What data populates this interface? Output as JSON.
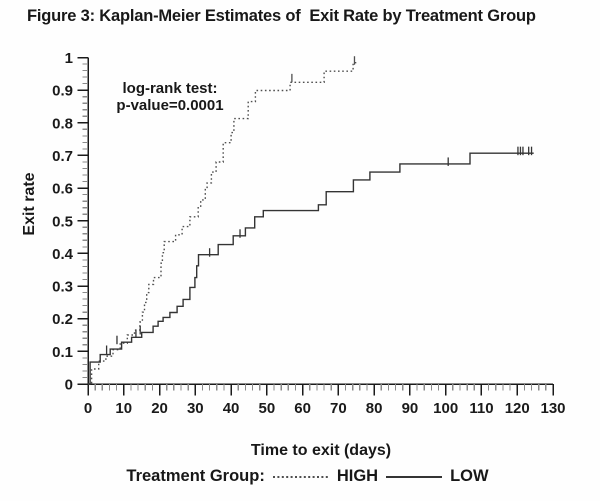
{
  "legend": {
    "title": "Treatment Group:"
  },
  "chart_data": {
    "type": "line",
    "subtype": "kaplan-meier-step",
    "title": "Figure 3: Kaplan-Meier Estimates of  Exit Rate by Treatment Group",
    "xlabel": "Time to exit (days)",
    "ylabel": "Exit rate",
    "xlim": [
      0,
      130
    ],
    "ylim": [
      0,
      1
    ],
    "x_ticks": [
      0,
      10,
      20,
      30,
      40,
      50,
      60,
      70,
      80,
      90,
      100,
      110,
      120,
      130
    ],
    "y_ticks": [
      "0",
      "0.1",
      "0.2",
      "0.3",
      "0.4",
      "0.5",
      "0.6",
      "0.7",
      "0.8",
      "0.9",
      "1"
    ],
    "x_minor_step": 2,
    "y_minor_step": 0.02,
    "grid": "off",
    "legend_position": "bottom",
    "annotation": [
      "log-rank test:",
      "p-value=0.0001"
    ],
    "axis_color": "#1a1a1a",
    "minor_tick_color": "#8a8a8a",
    "series": [
      {
        "name": "HIGH",
        "line_style": "dotted",
        "color": "#4f4f4f",
        "points": [
          [
            0,
            0
          ],
          [
            1,
            0.046
          ],
          [
            3,
            0.07
          ],
          [
            5,
            0.085
          ],
          [
            7,
            0.105
          ],
          [
            9,
            0.125
          ],
          [
            11,
            0.15
          ],
          [
            13,
            0.165
          ],
          [
            14.5,
            0.19
          ],
          [
            15.2,
            0.22
          ],
          [
            15.8,
            0.25
          ],
          [
            16.4,
            0.28
          ],
          [
            17,
            0.305
          ],
          [
            18.3,
            0.326
          ],
          [
            20.4,
            0.37
          ],
          [
            20.8,
            0.402
          ],
          [
            21.3,
            0.436
          ],
          [
            24.5,
            0.457
          ],
          [
            26.3,
            0.482
          ],
          [
            28.5,
            0.512
          ],
          [
            30.8,
            0.54
          ],
          [
            31.5,
            0.564
          ],
          [
            32.8,
            0.6
          ],
          [
            33.3,
            0.616
          ],
          [
            34.5,
            0.649
          ],
          [
            35.8,
            0.68
          ],
          [
            37.8,
            0.739
          ],
          [
            40,
            0.77
          ],
          [
            40.8,
            0.813
          ],
          [
            44.8,
            0.865
          ],
          [
            46.8,
            0.899
          ],
          [
            56.5,
            0.924
          ],
          [
            66,
            0.958
          ],
          [
            74.1,
            0.984
          ]
        ],
        "end_day": 75,
        "censor_marks": [
          [
            57,
            0.93
          ],
          [
            74.5,
            0.984
          ]
        ]
      },
      {
        "name": "LOW",
        "line_style": "solid",
        "color": "#343434",
        "points": [
          [
            0,
            0
          ],
          [
            0.6,
            0.067
          ],
          [
            3.4,
            0.09
          ],
          [
            6.2,
            0.107
          ],
          [
            9.4,
            0.128
          ],
          [
            12.2,
            0.143
          ],
          [
            15,
            0.158
          ],
          [
            18.2,
            0.177
          ],
          [
            19.6,
            0.192
          ],
          [
            21,
            0.204
          ],
          [
            22.9,
            0.219
          ],
          [
            24.9,
            0.238
          ],
          [
            26.6,
            0.259
          ],
          [
            28.5,
            0.296
          ],
          [
            29.9,
            0.326
          ],
          [
            30.4,
            0.362
          ],
          [
            30.9,
            0.396
          ],
          [
            36.4,
            0.427
          ],
          [
            40.6,
            0.454
          ],
          [
            44,
            0.478
          ],
          [
            46.6,
            0.512
          ],
          [
            49,
            0.531
          ],
          [
            64.4,
            0.549
          ],
          [
            66.6,
            0.589
          ],
          [
            74.2,
            0.625
          ],
          [
            78.8,
            0.649
          ],
          [
            87.2,
            0.674
          ],
          [
            106.8,
            0.707
          ]
        ],
        "end_day": 124.6,
        "censor_marks": [
          [
            5.2,
            0.098
          ],
          [
            8.1,
            0.128
          ],
          [
            13.4,
            0.147
          ],
          [
            14.6,
            0.158
          ],
          [
            34,
            0.396
          ],
          [
            42.5,
            0.454
          ],
          [
            100.7,
            0.674
          ],
          [
            120.2,
            0.707
          ],
          [
            120.9,
            0.707
          ],
          [
            121.6,
            0.707
          ],
          [
            123.2,
            0.707
          ],
          [
            124,
            0.707
          ]
        ]
      }
    ]
  }
}
